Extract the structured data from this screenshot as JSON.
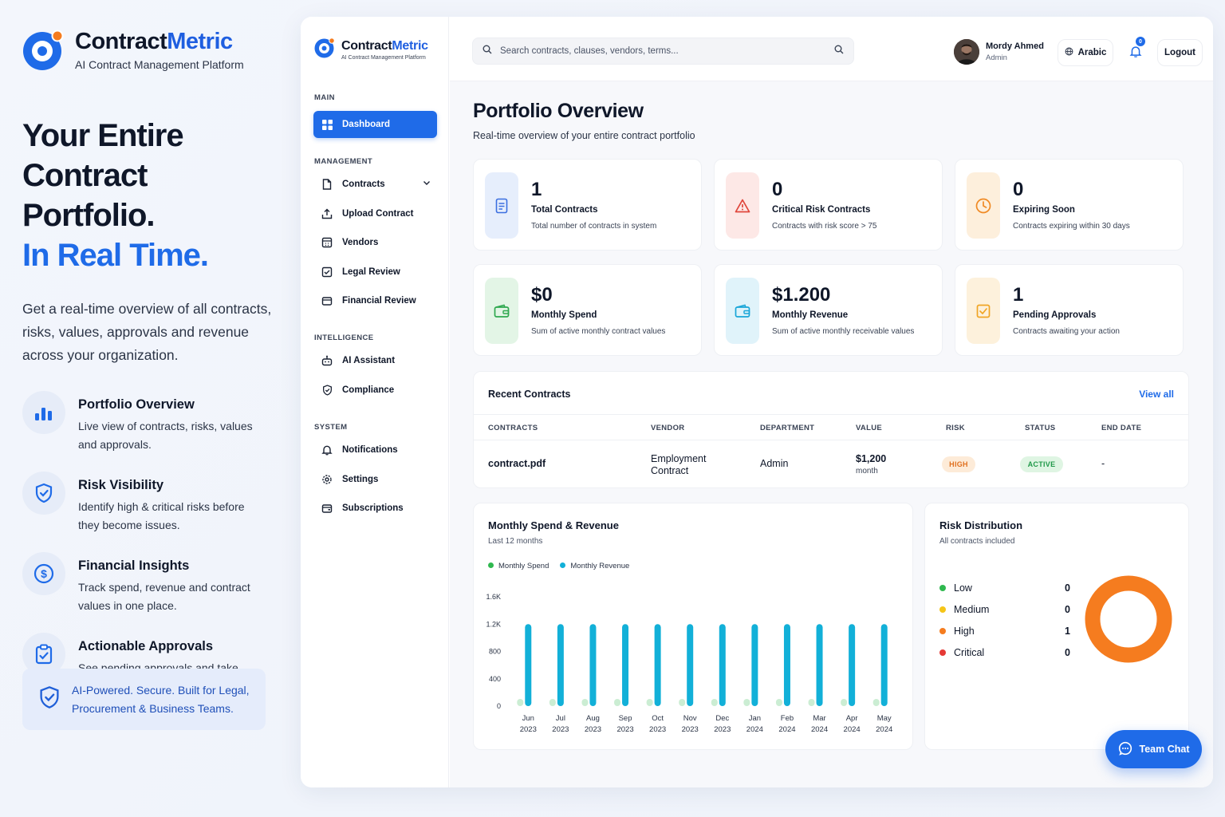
{
  "brand": {
    "name_part1": "Contract",
    "name_part2": "Metric",
    "tagline": "AI Contract Management Platform"
  },
  "hero": {
    "line1": "Your Entire",
    "line2": "Contract Portfolio.",
    "line3": "In Real Time.",
    "description": "Get a real-time overview of all contracts, risks, values, approvals and revenue across your organization."
  },
  "features": [
    {
      "title": "Portfolio Overview",
      "desc": "Live view of contracts, risks, values and approvals.",
      "icon": "bar-chart-icon"
    },
    {
      "title": "Risk Visibility",
      "desc": "Identify high & critical risks before they become issues.",
      "icon": "shield-check-icon"
    },
    {
      "title": "Financial Insights",
      "desc": "Track spend, revenue and contract values in one place.",
      "icon": "dollar-icon"
    },
    {
      "title": "Actionable Approvals",
      "desc": "See pending approvals and take action faster.",
      "icon": "clipboard-check-icon"
    }
  ],
  "promo_banner": "AI-Powered. Secure. Built for Legal, Procurement & Business Teams.",
  "sidebar": {
    "sections": {
      "main": "MAIN",
      "management": "MANAGEMENT",
      "intelligence": "INTELLIGENCE",
      "system": "SYSTEM"
    },
    "items": {
      "dashboard": "Dashboard",
      "contracts": "Contracts",
      "upload": "Upload Contract",
      "vendors": "Vendors",
      "legal": "Legal Review",
      "financial": "Financial Review",
      "ai": "AI Assistant",
      "compliance": "Compliance",
      "notifications": "Notifications",
      "settings": "Settings",
      "subscriptions": "Subscriptions"
    }
  },
  "topbar": {
    "search_placeholder": "Search contracts, clauses, vendors, terms...",
    "user_name": "Mordy Ahmed",
    "user_role": "Admin",
    "language": "Arabic",
    "notification_count": "0",
    "logout": "Logout"
  },
  "page": {
    "title": "Portfolio Overview",
    "subtitle": "Real-time overview of your entire contract portfolio"
  },
  "stats": [
    {
      "value": "1",
      "label": "Total Contracts",
      "desc": "Total number of contracts in system",
      "color": "#3b6fe0",
      "bg": "#e6eefc",
      "icon": "document-icon"
    },
    {
      "value": "0",
      "label": "Critical Risk Contracts",
      "desc": "Contracts with risk score > 75",
      "color": "#e0463b",
      "bg": "#fde8e6",
      "icon": "warning-icon"
    },
    {
      "value": "0",
      "label": "Expiring Soon",
      "desc": "Contracts expiring within 30 days",
      "color": "#f08a24",
      "bg": "#fdefdc",
      "icon": "clock-icon"
    },
    {
      "value": "$0",
      "label": "Monthly Spend",
      "desc": "Sum of active monthly contract values",
      "color": "#2fa84f",
      "bg": "#e3f5e6",
      "icon": "wallet-icon"
    },
    {
      "value": "$1.200",
      "label": "Monthly Revenue",
      "desc": "Sum of active monthly receivable values",
      "color": "#1aa6d8",
      "bg": "#e0f3fa",
      "icon": "wallet-in-icon"
    },
    {
      "value": "1",
      "label": "Pending Approvals",
      "desc": "Contracts awaiting your action",
      "color": "#f0a524",
      "bg": "#fdf1dc",
      "icon": "check-square-icon"
    }
  ],
  "recent": {
    "title": "Recent Contracts",
    "view_all": "View all",
    "columns": [
      "CONTRACTS",
      "VENDOR",
      "DEPARTMENT",
      "VALUE",
      "RISK",
      "STATUS",
      "END DATE"
    ],
    "rows": [
      {
        "contract": "contract.pdf",
        "vendor_line1": "Employment",
        "vendor_line2": "Contract",
        "department": "Admin",
        "value": "$1,200",
        "period": "month",
        "risk": "HIGH",
        "status": "ACTIVE",
        "end_date": "-"
      }
    ]
  },
  "chart_data": {
    "type": "bar",
    "title": "Monthly Spend & Revenue",
    "subtitle": "Last 12 months",
    "categories": [
      "Jun 2023",
      "Jul 2023",
      "Aug 2023",
      "Sep 2023",
      "Oct 2023",
      "Nov 2023",
      "Dec 2023",
      "Jan 2024",
      "Feb 2024",
      "Mar 2024",
      "Apr 2024",
      "May 2024"
    ],
    "series": [
      {
        "name": "Monthly Spend",
        "color": "#2fb84f",
        "values": [
          0,
          0,
          0,
          0,
          0,
          0,
          0,
          0,
          0,
          0,
          0,
          0
        ]
      },
      {
        "name": "Monthly Revenue",
        "color": "#12b0d8",
        "values": [
          1200,
          1200,
          1200,
          1200,
          1200,
          1200,
          1200,
          1200,
          1200,
          1200,
          1200,
          1200
        ]
      }
    ],
    "y_ticks": [
      "0",
      "400",
      "800",
      "1.2K",
      "1.6K"
    ],
    "ylim": [
      0,
      1600
    ],
    "legend": "top-left",
    "grid": false
  },
  "risk": {
    "title": "Risk Distribution",
    "subtitle": "All contracts included",
    "items": [
      {
        "label": "Low",
        "value": "0",
        "color": "#2fb84f"
      },
      {
        "label": "Medium",
        "value": "0",
        "color": "#f5c518"
      },
      {
        "label": "High",
        "value": "1",
        "color": "#f57c1f"
      },
      {
        "label": "Critical",
        "value": "0",
        "color": "#e53935"
      }
    ]
  },
  "team_chat": "Team Chat"
}
